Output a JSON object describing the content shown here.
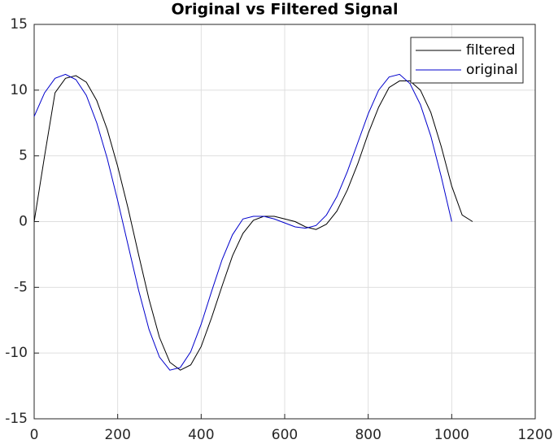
{
  "chart_data": {
    "type": "line",
    "title": "Original vs Filtered Signal",
    "xlim": [
      0,
      1200
    ],
    "xticks": [
      0,
      200,
      400,
      600,
      800,
      1000,
      1200
    ],
    "ylim": [
      -15,
      15
    ],
    "yticks": [
      -15,
      -10,
      -5,
      0,
      5,
      10,
      15
    ],
    "grid": true,
    "legend": "top-right",
    "series": [
      {
        "name": "filtered",
        "color": "#000000",
        "x": [
          0,
          25,
          50,
          75,
          100,
          125,
          150,
          175,
          200,
          225,
          250,
          275,
          300,
          325,
          350,
          375,
          400,
          425,
          450,
          475,
          500,
          525,
          550,
          575,
          600,
          625,
          650,
          675,
          700,
          725,
          750,
          775,
          800,
          825,
          850,
          875,
          900,
          925,
          950,
          975,
          1000,
          1025,
          1050
        ],
        "values": [
          0,
          5.0,
          9.8,
          10.9,
          11.1,
          10.6,
          9.2,
          7.0,
          4.2,
          1.0,
          -2.5,
          -5.9,
          -8.8,
          -10.7,
          -11.3,
          -10.9,
          -9.5,
          -7.3,
          -4.9,
          -2.6,
          -0.9,
          0.1,
          0.4,
          0.4,
          0.2,
          0.0,
          -0.4,
          -0.6,
          -0.2,
          0.8,
          2.4,
          4.4,
          6.7,
          8.7,
          10.2,
          10.7,
          10.7,
          10.0,
          8.3,
          5.7,
          2.7,
          0.5,
          0.0
        ]
      },
      {
        "name": "original",
        "color": "#0000cc",
        "x": [
          0,
          25,
          50,
          75,
          100,
          125,
          150,
          175,
          200,
          225,
          250,
          275,
          300,
          325,
          350,
          375,
          400,
          425,
          450,
          475,
          500,
          525,
          550,
          575,
          600,
          625,
          650,
          675,
          700,
          725,
          750,
          775,
          800,
          825,
          850,
          875,
          900,
          925,
          950,
          975,
          1000
        ],
        "values": [
          8.0,
          9.8,
          10.9,
          11.2,
          10.8,
          9.6,
          7.5,
          4.8,
          1.6,
          -1.8,
          -5.2,
          -8.2,
          -10.3,
          -11.3,
          -11.1,
          -9.9,
          -7.8,
          -5.3,
          -2.9,
          -1.0,
          0.2,
          0.4,
          0.4,
          0.2,
          -0.1,
          -0.4,
          -0.5,
          -0.3,
          0.5,
          1.9,
          3.8,
          6.0,
          8.2,
          10.0,
          11.0,
          11.2,
          10.5,
          8.9,
          6.5,
          3.4,
          0.0
        ]
      }
    ]
  }
}
